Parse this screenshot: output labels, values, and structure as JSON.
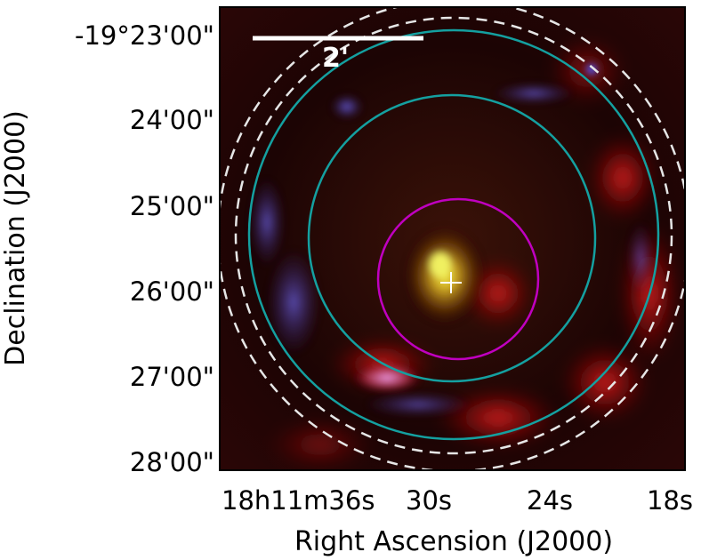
{
  "axes": {
    "xlabel": "Right Ascension (J2000)",
    "ylabel": "Declination (J2000)",
    "xticks": [
      "18h11m36s",
      "30s",
      "24s",
      "18s"
    ],
    "yticks": [
      "-19°23'00\"",
      "24'00\"",
      "25'00\"",
      "26'00\"",
      "27'00\"",
      "28'00\""
    ]
  },
  "scalebar": {
    "label": "2'"
  },
  "colors": {
    "inner_circle": "#c000c0",
    "middle_circles": "#14a0a0",
    "outer_dashed": "#e6e6e6",
    "center_marker": "#ffffff",
    "scalebar": "#ffffff"
  },
  "image": {
    "composite": "false-color astronomical image, RGB composite",
    "marker_icon": "cross-marker"
  }
}
